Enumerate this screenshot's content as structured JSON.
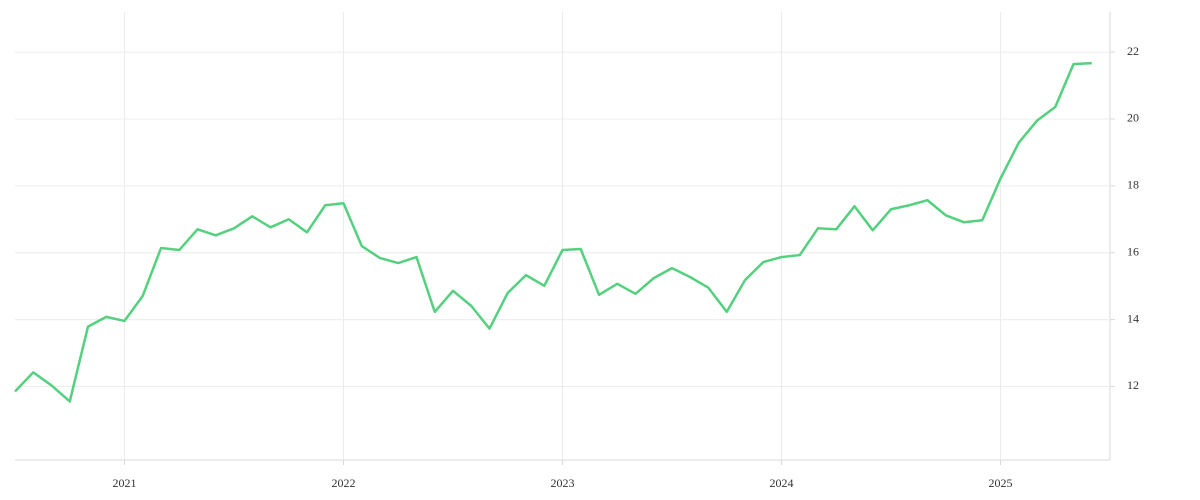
{
  "chart_data": {
    "type": "line",
    "x": [
      2020.5,
      2020.5833,
      2020.6667,
      2020.75,
      2020.8333,
      2020.9167,
      2021.0,
      2021.0833,
      2021.1667,
      2021.25,
      2021.3333,
      2021.4167,
      2021.5,
      2021.5833,
      2021.6667,
      2021.75,
      2021.8333,
      2021.9167,
      2022.0,
      2022.0833,
      2022.1667,
      2022.25,
      2022.3333,
      2022.4167,
      2022.5,
      2022.5833,
      2022.6667,
      2022.75,
      2022.8333,
      2022.9167,
      2023.0,
      2023.0833,
      2023.1667,
      2023.25,
      2023.3333,
      2023.4167,
      2023.5,
      2023.5833,
      2023.6667,
      2023.75,
      2023.8333,
      2023.9167,
      2024.0,
      2024.0833,
      2024.1667,
      2024.25,
      2024.3333,
      2024.4167,
      2024.5,
      2024.5833,
      2024.6667,
      2024.75,
      2024.8333,
      2024.9167,
      2025.0,
      2025.0833,
      2025.1667,
      2025.25,
      2025.3333,
      2025.4167
    ],
    "series": [
      {
        "color": "#55d07f",
        "values": [
          11.85,
          12.42,
          12.03,
          11.55,
          13.79,
          14.08,
          13.96,
          14.71,
          16.14,
          16.08,
          16.7,
          16.52,
          16.73,
          17.09,
          16.76,
          17.0,
          16.61,
          17.42,
          17.48,
          16.2,
          15.84,
          15.69,
          15.87,
          14.23,
          14.86,
          14.41,
          13.73,
          14.8,
          15.33,
          15.01,
          16.08,
          16.11,
          14.74,
          15.07,
          14.77,
          15.24,
          15.54,
          15.27,
          14.95,
          14.23,
          15.18,
          15.72,
          15.87,
          15.93,
          16.73,
          16.7,
          17.39,
          16.67,
          17.3,
          17.42,
          17.57,
          17.12,
          16.91,
          16.97,
          18.22,
          19.29,
          19.95,
          20.36,
          21.64,
          21.67
        ]
      }
    ],
    "xlim": [
      2020.5,
      2025.5
    ],
    "xticks": [
      2021,
      2022,
      2023,
      2024,
      2025
    ],
    "ylim": [
      9.8,
      23.2
    ],
    "yticks": [
      12,
      14,
      16,
      18,
      20,
      22
    ],
    "grid": true
  }
}
